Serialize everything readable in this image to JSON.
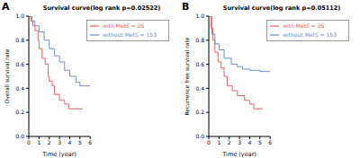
{
  "chart_data": [
    {
      "type": "line",
      "annotations": [
        "A"
      ],
      "title": "Survival curve(log rank p=0.02522)",
      "x_label": "Time (year)",
      "y_label": "Overall survival rate",
      "xlim": [
        0,
        6
      ],
      "xticks": [
        0,
        1,
        2,
        3,
        4,
        5,
        6
      ],
      "ylim": [
        0,
        1
      ],
      "yticks": [
        {
          "value": 0,
          "label": "0.0"
        },
        0.2,
        0.4,
        0.6,
        0.8,
        {
          "value": 1,
          "label": "1.0"
        }
      ],
      "legend": "upper right",
      "grid": false,
      "series": [
        {
          "name": "with MetS = 26",
          "color": "#f06060",
          "line_style": "step",
          "x": [
            0,
            0.2,
            0.4,
            0.6,
            0.9,
            1.0,
            1.3,
            1.6,
            1.9,
            2.0,
            2.3,
            2.5,
            3.0,
            3.5,
            3.9,
            5.3
          ],
          "values": [
            1.0,
            0.96,
            0.92,
            0.88,
            0.8,
            0.73,
            0.65,
            0.6,
            0.5,
            0.46,
            0.42,
            0.35,
            0.3,
            0.27,
            0.23,
            0.23
          ]
        },
        {
          "name": "without MetS = 153",
          "color": "#6b8fd6",
          "line_style": "step",
          "x": [
            0,
            0.3,
            0.6,
            1.0,
            1.5,
            2.0,
            2.5,
            3.0,
            3.5,
            4.0,
            4.6,
            5.0,
            6.0
          ],
          "values": [
            1.0,
            0.96,
            0.92,
            0.87,
            0.8,
            0.73,
            0.67,
            0.62,
            0.55,
            0.5,
            0.45,
            0.42,
            0.42
          ]
        }
      ]
    },
    {
      "type": "line",
      "annotations": [
        "B"
      ],
      "title": "Survival curve(log rank p=0.05112)",
      "x_label": "Time (year)",
      "y_label": "Recurrence free survival rate",
      "xlim": [
        0,
        6
      ],
      "xticks": [
        0,
        1,
        2,
        3,
        4,
        5,
        6
      ],
      "ylim": [
        0,
        1
      ],
      "yticks": [
        {
          "value": 0,
          "label": "0.0"
        },
        0.2,
        0.4,
        0.6,
        0.8,
        {
          "value": 1,
          "label": "1.0"
        }
      ],
      "legend": "upper right",
      "grid": false,
      "series": [
        {
          "name": "with MetS = 26",
          "color": "#f06060",
          "line_style": "step",
          "x": [
            0,
            0.2,
            0.4,
            0.6,
            0.9,
            1.2,
            1.5,
            1.8,
            2.3,
            2.8,
            3.5,
            4.0,
            4.4,
            5.3
          ],
          "values": [
            1.0,
            0.9,
            0.8,
            0.7,
            0.62,
            0.57,
            0.5,
            0.42,
            0.38,
            0.34,
            0.3,
            0.27,
            0.23,
            0.23
          ]
        },
        {
          "name": "without MetS = 153",
          "color": "#6b8fd6",
          "line_style": "step",
          "x": [
            0,
            0.3,
            0.6,
            1.0,
            1.5,
            2.2,
            2.8,
            3.3,
            4.0,
            5.0,
            6.0
          ],
          "values": [
            1.0,
            0.85,
            0.77,
            0.72,
            0.65,
            0.6,
            0.58,
            0.56,
            0.55,
            0.54,
            0.54
          ]
        }
      ]
    }
  ]
}
